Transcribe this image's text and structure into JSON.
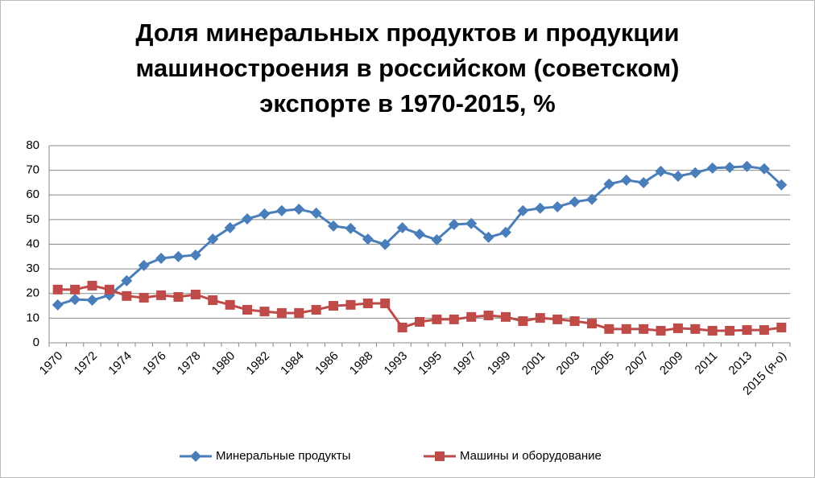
{
  "chart_data": {
    "type": "line",
    "title": "Доля минеральных продуктов и продукции машиностроения в российском (советском) экспорте в 1970-2015, %",
    "categories": [
      "1970",
      null,
      "1972",
      null,
      "1974",
      null,
      "1976",
      null,
      "1978",
      null,
      "1980",
      null,
      "1982",
      null,
      "1984",
      null,
      "1986",
      null,
      "1988",
      null,
      "1993",
      null,
      "1995",
      null,
      "1997",
      null,
      "1999",
      null,
      "2001",
      null,
      "2003",
      null,
      "2005",
      null,
      "2007",
      null,
      "2009",
      null,
      "2011",
      null,
      "2013",
      null,
      "2015 (я-о)"
    ],
    "series": [
      {
        "name": "Минеральные продукты",
        "color": "#4a7ebb",
        "marker": "diamond",
        "values": [
          15.4,
          17.6,
          17.3,
          19.3,
          25.2,
          31.4,
          34.3,
          35,
          35.6,
          42.1,
          46.7,
          50.3,
          52.3,
          53.6,
          54.2,
          52.6,
          47.4,
          46.4,
          42.1,
          39.9,
          46.7,
          44.1,
          41.8,
          48,
          48.4,
          42.8,
          44.8,
          53.6,
          54.6,
          55.2,
          57.2,
          58.2,
          64.4,
          66,
          65,
          69.6,
          67.6,
          69,
          70.9,
          71.2,
          71.6,
          70.6,
          64.1
        ]
      },
      {
        "name": "Машины и оборудование",
        "color": "#be4b48",
        "marker": "square",
        "values": [
          21.6,
          21.6,
          23.2,
          21.6,
          19,
          18.3,
          19.3,
          18.6,
          19.6,
          17.3,
          15.4,
          13.4,
          12.7,
          12.1,
          12.1,
          13.4,
          15,
          15.4,
          16,
          16,
          6.2,
          8.5,
          9.5,
          9.5,
          10.5,
          11.1,
          10.5,
          8.8,
          10.1,
          9.5,
          8.8,
          7.8,
          5.6,
          5.6,
          5.6,
          4.9,
          5.9,
          5.6,
          4.9,
          4.9,
          5.2,
          5.2,
          6.2
        ]
      }
    ],
    "ylim": [
      0,
      80
    ],
    "yticks": [
      0,
      10,
      20,
      30,
      40,
      50,
      60,
      70,
      80
    ],
    "grid": true,
    "legend": "bottom"
  }
}
